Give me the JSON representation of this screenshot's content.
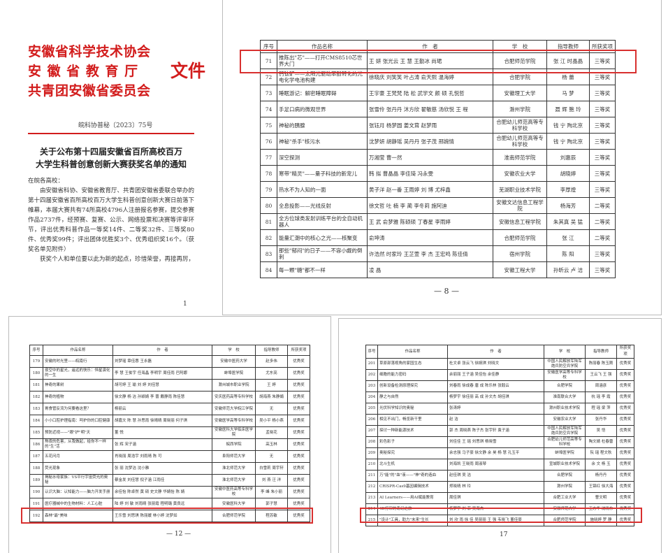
{
  "notice_page": {
    "issuer_lines": [
      "安徽省科学技术协会",
      "安 徽 省 教 育 厅",
      "共青团安徽省委员会"
    ],
    "issuer_suffix": "文件",
    "doc_number": "皖科协普秘〔2023〕75号",
    "title_lines": [
      "关于公布第十四届安徽省百所高校百万",
      "大学生科普创意创新大赛获奖名单的通知"
    ],
    "salutation": "在皖各高校：",
    "paragraphs": [
      "由安徽省科协、安徽省教育厅、共青团安徽省委联合举办的第十四届安徽省百所高校百万大学生科普创意创新大赛日前落下帷幕，本届大赛共有74所高校4796人注册报名参赛，提交参赛作品2737件，经预赛、复赛、公示、网络投票和决赛等评审环节，评出优秀科普作品一等奖14件、二等奖32件、三等奖80件、优秀奖99件；评出团体优胜奖3个、优秀组织奖16个。（获奖名单见附件）",
      "获奖个人和单位要以此为新的起点，珍惜荣誉，再接再厉，"
    ],
    "page_number": "1"
  },
  "table_headers": [
    "序号",
    "作品名称",
    "作　者",
    "学　校",
    "指导教师",
    "所获奖项"
  ],
  "page8": {
    "page_number": "— 8 —",
    "rows": [
      [
        "71",
        "推陈出\"芯\"——打开CMS8510芯世界大门",
        "王 妍 张光云 王 慧 王勤冰 尚珺",
        "合肥师范学院",
        "张 江 时晶晶",
        "三等奖"
      ],
      [
        "72",
        "钙钛矿——太阳光驱动苯酚转化的光电化学电池构建",
        "徐晓庆 刘笑笑 叶占涛 俞天熙 温海婷",
        "合肥学院",
        "杨 蕾",
        "三等奖"
      ],
      [
        "73",
        "睡眠游记：解密睡眠障碍",
        "王宇豪 王梵梵 陆 松 武学文 颜 硕 孔悦哲",
        "安徽理工大学",
        "马 梦",
        "三等奖"
      ],
      [
        "74",
        "手足口病的微观世界",
        "张雪伶 张丹丹 沐方欣 翟敏慈 汤欣悦 王 程",
        "滁州学院",
        "聂 辉 鲍 玲",
        "三等奖"
      ],
      [
        "75",
        "神秘的胰腺",
        "张钰月 杨梦圆 姜文茸 赵梦雨",
        "合肥幼儿师范高等专科学校",
        "钱 宁 陶北京",
        "三等奖"
      ],
      [
        "76",
        "神秘\"杀手\"核污水",
        "沈梦妍 胡静瑶 吴丹丹 张子茂 邢婉情",
        "合肥幼儿师范高等专科学校",
        "钱 宁 陶北京",
        "三等奖"
      ],
      [
        "77",
        "深空探测",
        "万湘莹 曹一然",
        "淮南师范学院",
        "刘惠辰",
        "三等奖"
      ],
      [
        "78",
        "寒带\"精灵\"——量子科技的新宠儿",
        "韩 拟 曹晶晶 李佳琦 冯永雯",
        "安徽农业大学",
        "胡晓婷",
        "三等奖"
      ],
      [
        "79",
        "热水不为人知的一面",
        "黄子洋 赵一番 王雨婷 刘 博 尤梓鑫",
        "芜湖职业技术学院",
        "李厚煌",
        "三等奖"
      ],
      [
        "80",
        "全息投影——光线反射",
        "徐文哲 吐 楠 李 蔺 李冬莉 施阿迪",
        "安徽文达信息工程学院",
        "杨海芳",
        "二等奖"
      ],
      [
        "81",
        "全方位球类发射训练平台的全自动机器人",
        "王 武 俞梦雅 陈硕硕 丁春星 李雨婷",
        "安徽信息工程学院",
        "朱其真 吴 猛",
        "二等奖"
      ],
      [
        "82",
        "能量汇潮中的核心之光——核聚变",
        "俞坤涛",
        "合肥师范学院",
        "张 江",
        "二等奖"
      ],
      [
        "83",
        "那些\"郁闷\"的日子——不容小觑的倒刺",
        "许浩然 时家玲 王芷萱 李 杰 王宏鸣 陈佳倩",
        "宿州学院",
        "陈 阳",
        "三等奖"
      ],
      [
        "84",
        "每一颗\"糖\"都不一样",
        "凌 晶",
        "安徽工程大学",
        "孙昕云 卢 洁",
        "三等奖"
      ]
    ]
  },
  "page12": {
    "page_number": "— 12 —",
    "rows": [
      [
        "179",
        "安徽的时光里——皖南行",
        "刘梦瑶 章佳惠 王永磊",
        "安徽中医药大学",
        "赵多伟",
        "优秀奖"
      ],
      [
        "180",
        "夜空中的星光，遥远的快乐：恒星演化的一生",
        "李 慧 王俊宇 任海晶 李明宇 周佳雨 巴阿娜",
        "蚌埠医学院",
        "尤东亮",
        "优秀奖"
      ],
      [
        "181",
        "神奇的果树",
        "胡可婷 王 瑜 刘 婷 刘佳慧",
        "滁州城市职业学院",
        "王 婷",
        "优秀奖"
      ],
      [
        "182",
        "神奇的植物",
        "徐文静 杨 洁 孙颖婧 李 蕾 戴静雨 陈佳慧",
        "安庆医药高等专科学校",
        "胡海燕 朱静娟",
        "优秀奖"
      ],
      [
        "183",
        "胃食管反流为何要看这里？",
        "杨丽云",
        "安徽师范大学皖江学院",
        "无",
        "优秀奖"
      ],
      [
        "184",
        "小小口腔护理指南：呵护你的口腔健康",
        "胡嘉文 陈 慧 孙思雨 徐晴晴 周晓丽 何子琪",
        "安徽医学高等专科学校",
        "吴小平 杨小燕",
        "优秀奖"
      ],
      [
        "185",
        "预防近视——\"眼\"护\"明\"天",
        "董 悦",
        "安徽医科大学临床医学院",
        "孟晓花",
        "优秀奖"
      ],
      [
        "186",
        "熬夜的危害，从我做起，给你不一样的\"生\"活",
        "张 辉 宋子涵",
        "皖西学院",
        "高玉林",
        "优秀奖"
      ],
      [
        "187",
        "五花问月",
        "肖晓丽 周浩宇 刘雨晴 陈 可",
        "阜阳师范大学",
        "无",
        "优秀奖"
      ],
      [
        "188",
        "荧光现象",
        "张 丽 沈梦洁 沈小雅",
        "淮北师范大学",
        "白雪莉 周宇轩",
        "优秀奖"
      ],
      [
        "189",
        "揭秘水母家族：VS平行宇宙荧光的奥秘",
        "蔡金发 刘佳慧 倪子涵 江雨佳",
        "淮北师范大学",
        "刘 燕 汪 洋",
        "优秀奖"
      ],
      [
        "190",
        "认识大脑：认知能力——脑力开发手册",
        "余佳怡 陈卓然 黄 硕 史文静 华婧怡 陈 婧",
        "安徽中医药高等专科学校",
        "李 峰 朱小丽",
        "优秀奖"
      ],
      [
        "191",
        "医疗器械中的生物材料：人工心脏",
        "陆 婷 刘 敏 刘雨晴 张丽霞 程明璐 黄良远",
        "安徽医科大学",
        "郭子慧",
        "优秀奖"
      ],
      [
        "192",
        "森林\"最\"美味",
        "王乐雪 刘思琪 陈丽媛 林小婷 沈梦如",
        "合肥师范学院",
        "程苏敏",
        "优秀奖"
      ]
    ]
  },
  "page17": {
    "page_number": "17",
    "rows": [
      [
        "201",
        "草原部落视角的家园生态",
        "杜文卓 张云飞 徐婉琪 刘晓文",
        "中国人民解放军陆军炮兵防空兵学院",
        "陈丽春 陈玉刚",
        "优秀奖"
      ],
      [
        "202",
        "细胞的能力密码",
        "余丽丽 王子涵 吴佳怡 余佳静",
        "安徽医学高等专科学校",
        "王云飞 王 强",
        "优秀奖"
      ],
      [
        "203",
        "创新设备检测原理探究",
        "刘春雨 徐成春 唐 成 陈乐林 张毅云",
        "合肥学院",
        "周涵彦",
        "优秀奖"
      ],
      [
        "204",
        "静之与自然",
        "杨梦宇 徐佳丽 高 成 孙文杰 胡佳琪",
        "淮南联合大学",
        "杭 瑶 李 霞",
        "优秀奖"
      ],
      [
        "205",
        "光伏科学知识的奥秘",
        "张涛婷",
        "滁州职业技术学院",
        "程 瑶 梁 萍",
        "优秀奖"
      ],
      [
        "206",
        "相见不出门，畅览新干里",
        "赵 洁",
        "安徽农业大学",
        "张丹华",
        "优秀奖"
      ],
      [
        "207",
        "探讨一种新能源技术",
        "郭 杰 周晓燕 陈子杰 张宇轩 袁子涵",
        "中国人民解放军陆军炮兵防空兵学院",
        "吴 恺",
        "优秀奖"
      ],
      [
        "208",
        "彩色影子",
        "刘佳佳 王 瑶 刘思琪 杨晓雪",
        "合肥幼儿师范高等专科学校",
        "陶文婧 杜春雷",
        "优秀奖"
      ],
      [
        "209",
        "奥秘探究",
        "余志强 马子豪 徐文静 余 昊 杨 慧 孔玉平",
        "蚌埠医学院",
        "阮 瑶 程文秋",
        "优秀奖"
      ],
      [
        "210",
        "北斗生机",
        "刘海凯 王晓雨 周淑琴",
        "宣城职业技术学院",
        "余 文 杨 玉",
        "优秀奖"
      ],
      [
        "211",
        "万\"能\"的\"血\"液——\"神\"奇的造血",
        "赵佳琪 吴 洁",
        "合肥学院",
        "杨丹丹",
        "优秀奖"
      ],
      [
        "212",
        "CRISPR-Cas9基因编辑技术",
        "郑晓晴 林 玲",
        "滁州学院",
        "王锦红 徐大海",
        "优秀奖"
      ],
      [
        "213",
        "AI Learners——用AI赋能教育",
        "周佳琪",
        "合肥工业大学",
        "曹文明",
        "优秀奖"
      ],
      [
        "214",
        "4D打印的奇幻之旅",
        "杨梦宇 刘 菲 吴海杰",
        "安徽师范大学",
        "王方华 沈晓东",
        "优秀奖"
      ],
      [
        "215",
        "\"设计\"工具，助力\"未来\"生长",
        "刘 欣 雨 徐 佳 吴丽丽 王 强 韦晓飞 董佳豪",
        "合肥师范学院",
        "施晓婷 罗 静",
        "优秀奖"
      ]
    ]
  },
  "highlight_color": "#d8302f",
  "header_red": "#d21c1c"
}
